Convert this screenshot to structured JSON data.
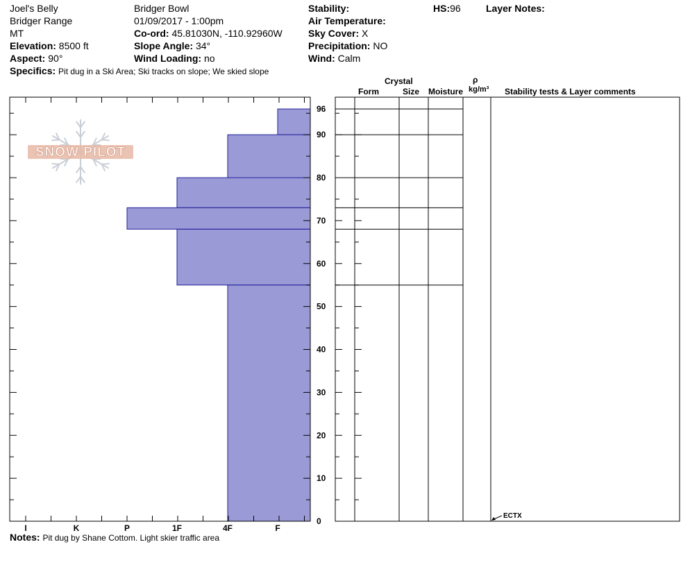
{
  "header": {
    "pit_name": "Joel's Belly",
    "range": "Bridger Range",
    "state": "MT",
    "elevation": {
      "label": "Elevation:",
      "value": "8500 ft"
    },
    "aspect": {
      "label": "Aspect:",
      "value": "90°"
    },
    "location": "Bridger Bowl",
    "datetime": "01/09/2017 - 1:00pm",
    "coord": {
      "label": "Co-ord:",
      "value": "45.81030N, -110.92960W"
    },
    "slope_angle": {
      "label": "Slope Angle:",
      "value": "34°"
    },
    "wind_loading": {
      "label": "Wind Loading:",
      "value": "no"
    },
    "stability": {
      "label": "Stability:",
      "value": ""
    },
    "air_temperature": {
      "label": "Air Temperature:",
      "value": ""
    },
    "sky_cover": {
      "label": "Sky Cover:",
      "value": "X"
    },
    "precipitation": {
      "label": "Precipitation:",
      "value": "NO"
    },
    "wind": {
      "label": "Wind:",
      "value": "Calm"
    },
    "hs": {
      "label": "HS:",
      "value": "96"
    },
    "layer_notes": {
      "label": "Layer Notes:",
      "value": ""
    },
    "specifics": {
      "label": "Specifics:",
      "value": "Pit dug in a Ski Area; Ski tracks on slope; We skied slope"
    }
  },
  "notes": {
    "label": "Notes:",
    "value": "Pit dug by Shane Cottom. Light skier traffic area"
  },
  "logo_text": "SNOW PILOT",
  "table_headers": {
    "crystal": "Crystal",
    "form": "Form",
    "size": "Size",
    "moisture": "Moisture",
    "rho": "ρ",
    "density_unit": "kg/m³",
    "stability_comments": "Stability tests & Layer comments"
  },
  "stability_test": {
    "label": "ECTX",
    "depth": 0
  },
  "colors": {
    "hardness_fill": "#9a9ad6",
    "hardness_stroke": "#20209a",
    "logo": "#e8b9a6"
  },
  "chart_data": {
    "type": "bar",
    "orientation": "horizontal",
    "x_axis_hardness_categories": [
      "I",
      "K",
      "P",
      "1F",
      "4F",
      "F"
    ],
    "y_ticks": [
      0,
      10,
      20,
      30,
      40,
      50,
      60,
      70,
      80,
      90,
      96
    ],
    "ylim": [
      0,
      96
    ],
    "ylabel_units": "cm",
    "layers": [
      {
        "top": 96,
        "bottom": 90,
        "hardness": "F"
      },
      {
        "top": 90,
        "bottom": 80,
        "hardness": "4F"
      },
      {
        "top": 80,
        "bottom": 73,
        "hardness": "1F"
      },
      {
        "top": 73,
        "bottom": 68,
        "hardness": "P"
      },
      {
        "top": 68,
        "bottom": 55,
        "hardness": "1F"
      },
      {
        "top": 55,
        "bottom": 0,
        "hardness": "4F"
      }
    ]
  }
}
